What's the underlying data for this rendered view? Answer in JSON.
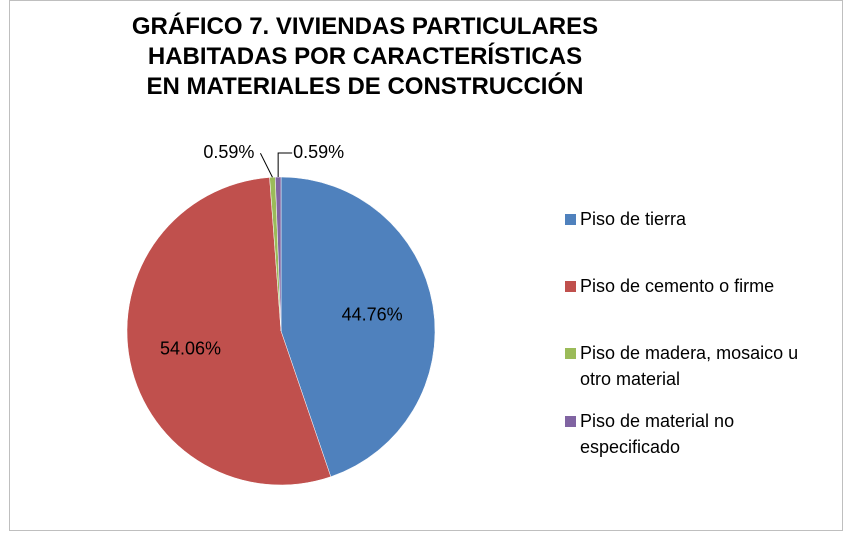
{
  "chart_data": {
    "type": "pie",
    "title": "GRÁFICO 7. VIVIENDAS PARTICULARES HABITADAS POR  CARACTERÍSTICAS EN MATERIALES DE CONSTRUCCIÓN",
    "categories": [
      "Piso de tierra",
      "Piso de cemento o firme",
      "Piso de madera, mosaico u otro material",
      "Piso de material no especificado"
    ],
    "values": [
      44.76,
      54.06,
      0.59,
      0.59
    ],
    "value_labels": [
      "44.76%",
      "54.06%",
      "0.59%",
      "0.59%"
    ],
    "colors": [
      "#4f81bd",
      "#c0504d",
      "#9bbb59",
      "#8064a2"
    ],
    "legend": "right"
  }
}
